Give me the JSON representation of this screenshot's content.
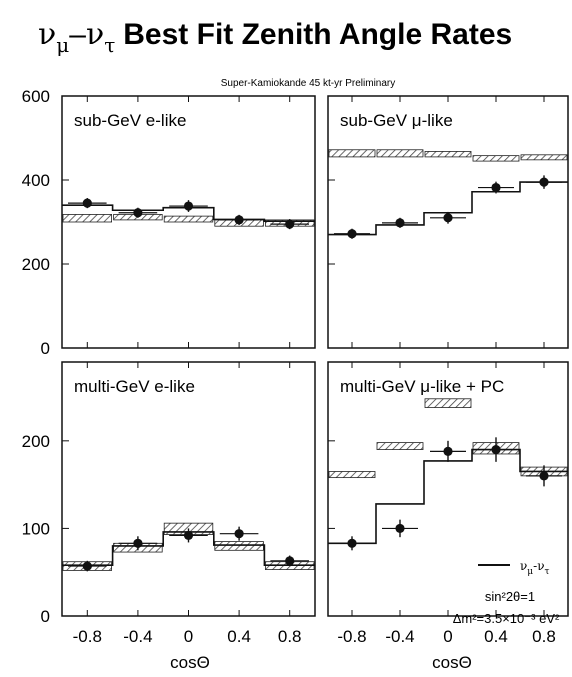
{
  "figure": {
    "title": "Best Fit Zenith Angle Rates",
    "title_prefix": {
      "nu": "ν",
      "sub1": "μ",
      "dash": "–",
      "nu2": "ν",
      "sub2": "τ"
    },
    "subtitle": "Super-Kamiokande 45 kt-yr Preliminary",
    "xlabel": "cosΘ",
    "legend": {
      "line_label": "ν",
      "line_label_sub1": "μ",
      "line_label_dash": "-",
      "line_label_nu2": "ν",
      "line_label_sub2": "τ",
      "param1": "sin²2θ=1",
      "param2": "Δm²=3.5×10⁻³ eV²"
    }
  },
  "chart_data": [
    {
      "type": "bar",
      "title": "sub-GeV e-like",
      "x_bins": [
        [
          -1.0,
          -0.6
        ],
        [
          -0.6,
          -0.2
        ],
        [
          -0.2,
          0.2
        ],
        [
          0.2,
          0.6
        ],
        [
          0.6,
          1.0
        ]
      ],
      "x_ticks": [
        "-0.8",
        "-0.4",
        "0",
        "0.4",
        "0.8"
      ],
      "y_ticks": [
        "0",
        "200",
        "400",
        "600"
      ],
      "ylim": [
        0,
        600
      ],
      "data": {
        "values": [
          345,
          322,
          338,
          305,
          295
        ],
        "errors": [
          12,
          12,
          14,
          12,
          12
        ]
      },
      "mc_no_osc": {
        "low": [
          300,
          305,
          300,
          290,
          290
        ],
        "high": [
          318,
          318,
          314,
          305,
          305
        ]
      },
      "best_fit": [
        340,
        328,
        334,
        306,
        302
      ]
    },
    {
      "type": "bar",
      "title": "sub-GeV μ-like",
      "x_bins": [
        [
          -1.0,
          -0.6
        ],
        [
          -0.6,
          -0.2
        ],
        [
          -0.2,
          0.2
        ],
        [
          0.2,
          0.6
        ],
        [
          0.6,
          1.0
        ]
      ],
      "x_ticks": [
        "-0.8",
        "-0.4",
        "0",
        "0.4",
        "0.8"
      ],
      "y_ticks": [
        "0",
        "200",
        "400",
        "600"
      ],
      "ylim": [
        0,
        600
      ],
      "data": {
        "values": [
          272,
          298,
          310,
          382,
          395
        ],
        "errors": [
          12,
          12,
          14,
          14,
          16
        ]
      },
      "mc_no_osc": {
        "low": [
          455,
          455,
          455,
          445,
          448
        ],
        "high": [
          472,
          472,
          468,
          458,
          460
        ]
      },
      "best_fit": [
        270,
        293,
        322,
        372,
        395
      ]
    },
    {
      "type": "bar",
      "title": "multi-GeV e-like",
      "x_bins": [
        [
          -1.0,
          -0.6
        ],
        [
          -0.6,
          -0.2
        ],
        [
          -0.2,
          0.2
        ],
        [
          0.2,
          0.6
        ],
        [
          0.6,
          1.0
        ]
      ],
      "x_ticks": [
        "-0.8",
        "-0.4",
        "0",
        "0.4",
        "0.8"
      ],
      "y_ticks": [
        "0",
        "100",
        "200"
      ],
      "ylim": [
        0,
        290
      ],
      "data": {
        "values": [
          57,
          83,
          92,
          94,
          63
        ],
        "errors": [
          6,
          8,
          8,
          8,
          6
        ]
      },
      "mc_no_osc": {
        "low": [
          52,
          73,
          93,
          75,
          53
        ],
        "high": [
          62,
          83,
          106,
          85,
          62
        ]
      },
      "best_fit": [
        58,
        80,
        96,
        81,
        58
      ]
    },
    {
      "type": "bar",
      "title": "multi-GeV μ-like + PC",
      "x_bins": [
        [
          -1.0,
          -0.6
        ],
        [
          -0.6,
          -0.2
        ],
        [
          -0.2,
          0.2
        ],
        [
          0.2,
          0.6
        ],
        [
          0.6,
          1.0
        ]
      ],
      "x_ticks": [
        "-0.8",
        "-0.4",
        "0",
        "0.4",
        "0.8"
      ],
      "y_ticks": [
        "0",
        "100",
        "200"
      ],
      "ylim": [
        0,
        290
      ],
      "data": {
        "values": [
          83,
          100,
          188,
          190,
          160
        ],
        "errors": [
          8,
          10,
          12,
          14,
          12
        ]
      },
      "mc_no_osc": {
        "low": [
          158,
          190,
          238,
          185,
          160
        ],
        "high": [
          165,
          198,
          248,
          198,
          170
        ]
      },
      "best_fit": [
        83,
        128,
        177,
        190,
        165
      ]
    }
  ]
}
